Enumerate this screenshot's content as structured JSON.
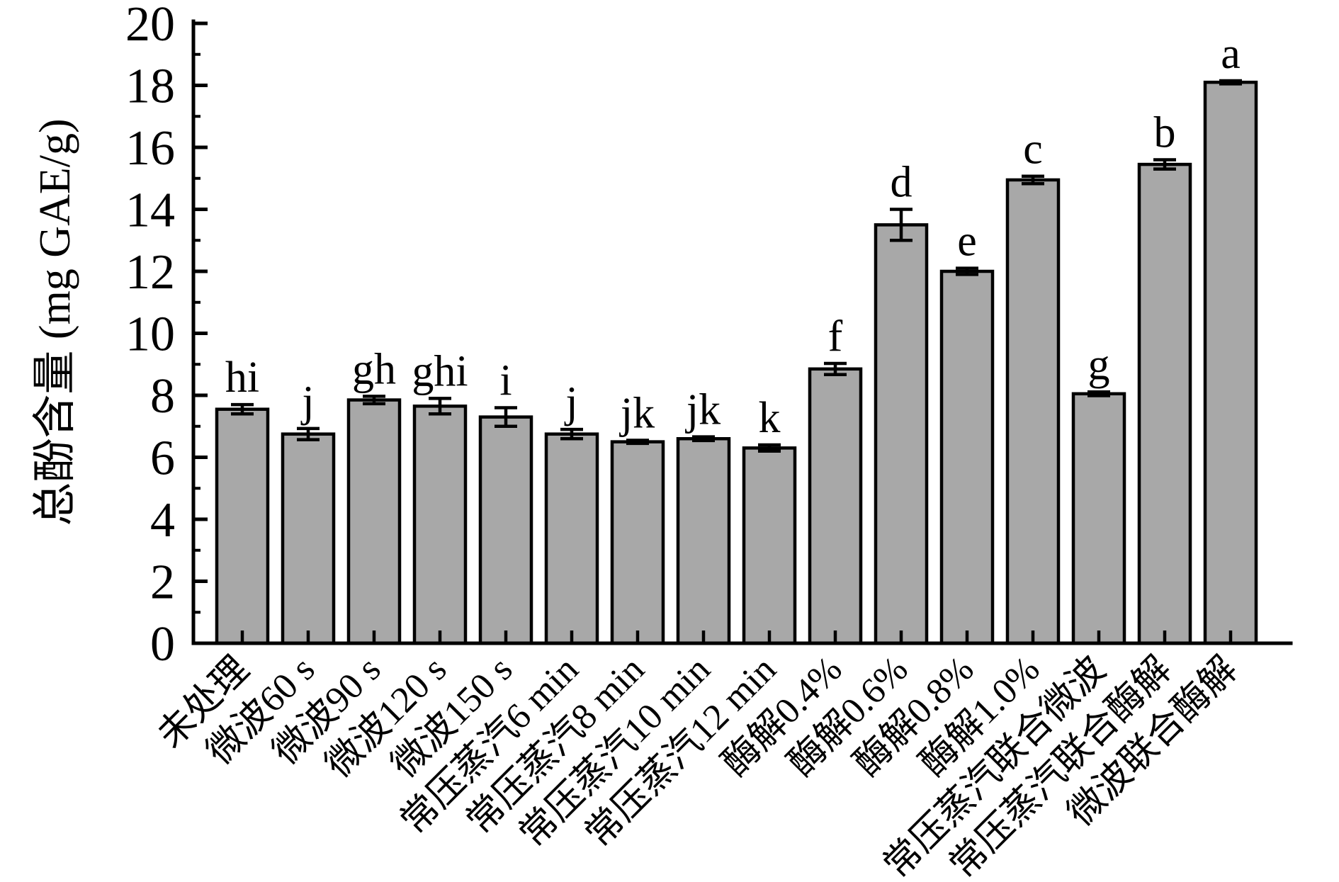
{
  "chart_data": {
    "type": "bar",
    "title": "",
    "xlabel": "",
    "ylabel": "总酚含量 (mg GAE/g)",
    "ylim": [
      0,
      20
    ],
    "ytick_step": 2,
    "minor_tick_step": 1,
    "grid": false,
    "legend": "none",
    "bar_color": "#a8a8a8",
    "bar_edge_color": "#000000",
    "axis_color": "#000000",
    "categories": [
      "未处理",
      "微波60 s",
      "微波90 s",
      "微波120 s",
      "微波150 s",
      "常压蒸汽6 min",
      "常压蒸汽8 min",
      "常压蒸汽10 min",
      "常压蒸汽12 min",
      "酶解0.4%",
      "酶解0.6%",
      "酶解0.8%",
      "酶解1.0%",
      "常压蒸汽联合微波",
      "常压蒸汽联合酶解",
      "微波联合酶解"
    ],
    "values": [
      7.55,
      6.75,
      7.85,
      7.65,
      7.3,
      6.75,
      6.5,
      6.6,
      6.3,
      8.85,
      13.5,
      12.0,
      14.95,
      8.05,
      15.45,
      18.1
    ],
    "errors": [
      0.15,
      0.18,
      0.12,
      0.25,
      0.3,
      0.15,
      0.05,
      0.06,
      0.1,
      0.18,
      0.5,
      0.1,
      0.12,
      0.06,
      0.15,
      0.05
    ],
    "sig_letters": [
      "hi",
      "j",
      "gh",
      "ghi",
      "i",
      "j",
      "jk",
      "jk",
      "k",
      "f",
      "d",
      "e",
      "c",
      "g",
      "b",
      "a"
    ],
    "ytick_labels": [
      "0",
      "2",
      "4",
      "6",
      "8",
      "10",
      "12",
      "14",
      "16",
      "18",
      "20"
    ]
  }
}
